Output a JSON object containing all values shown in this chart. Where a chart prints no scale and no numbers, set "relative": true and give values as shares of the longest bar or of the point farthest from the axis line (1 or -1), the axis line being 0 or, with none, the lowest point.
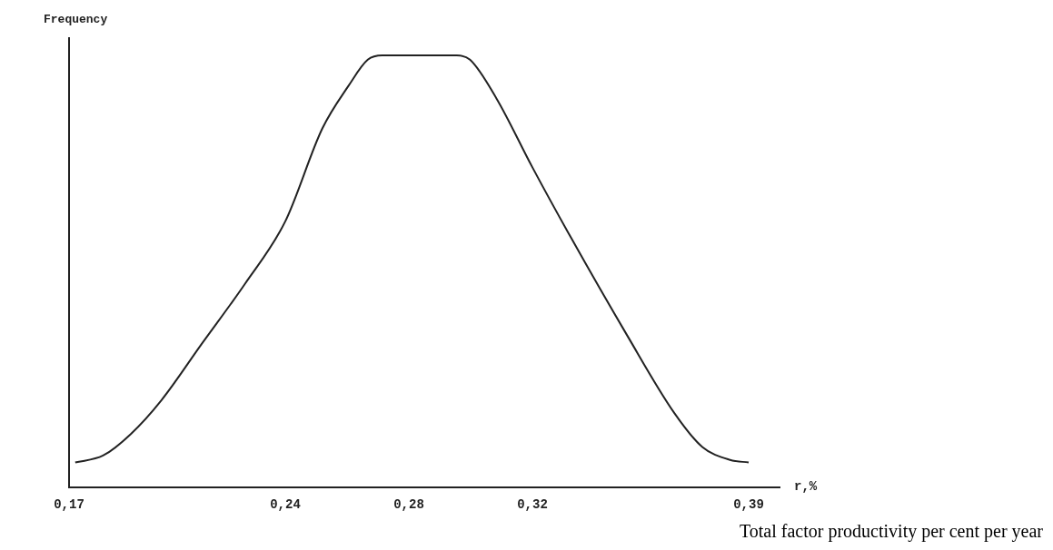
{
  "chart_data": {
    "type": "line",
    "ylabel": "Frequency",
    "xlabel": "r,%",
    "annotations": [
      "Total factor productivity per cent per year"
    ],
    "relative": true,
    "xlim": [
      0.17,
      0.4
    ],
    "xticks": [
      {
        "value": 0.17,
        "label": "0,17"
      },
      {
        "value": 0.24,
        "label": "0,24"
      },
      {
        "value": 0.28,
        "label": "0,28"
      },
      {
        "value": 0.32,
        "label": "0,32"
      },
      {
        "value": 0.39,
        "label": "0,39"
      }
    ],
    "grid": false,
    "legend": false,
    "marker": "none",
    "line_style": "solid",
    "series": [
      {
        "color": "#222222",
        "x": [
          0.172,
          0.181,
          0.19,
          0.2,
          0.213,
          0.227,
          0.24,
          0.252,
          0.2605,
          0.2667,
          0.2714,
          0.2955,
          0.2998,
          0.3084,
          0.32,
          0.3322,
          0.3506,
          0.3659,
          0.375,
          0.384,
          0.39
        ],
        "values": [
          0.058,
          0.074,
          0.124,
          0.203,
          0.333,
          0.472,
          0.616,
          0.831,
          0.93,
          0.99,
          1,
          1,
          0.99,
          0.9,
          0.741,
          0.582,
          0.353,
          0.173,
          0.094,
          0.064,
          0.058
        ]
      }
    ]
  }
}
